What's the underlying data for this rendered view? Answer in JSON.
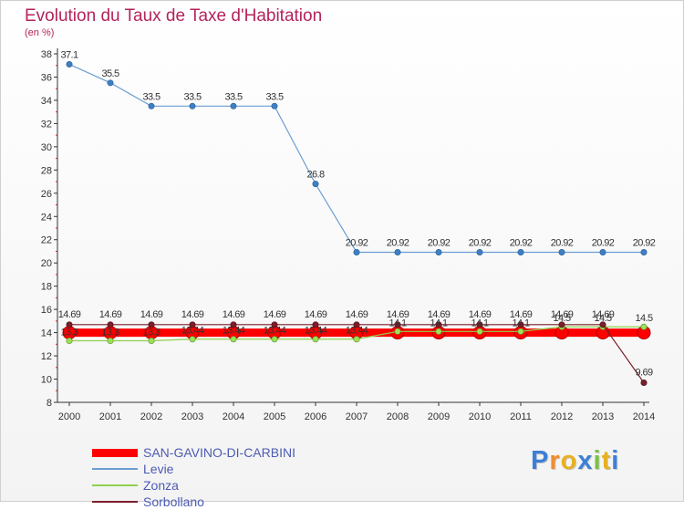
{
  "header": {
    "title": "Evolution du Taux de Taxe d'Habitation",
    "subtitle": "(en %)"
  },
  "chart_data": {
    "type": "line",
    "title": "Evolution du Taux de Taxe d'Habitation",
    "subtitle": "(en %)",
    "xlabel": "",
    "ylabel": "",
    "x": [
      2000,
      2001,
      2002,
      2003,
      2004,
      2005,
      2006,
      2007,
      2008,
      2009,
      2010,
      2011,
      2012,
      2013,
      2014
    ],
    "ylim": [
      8,
      38
    ],
    "yticks": [
      8,
      10,
      12,
      14,
      16,
      18,
      20,
      22,
      24,
      26,
      28,
      30,
      32,
      34,
      36,
      38
    ],
    "grid": false,
    "legend_position": "bottom-left",
    "series": [
      {
        "name": "SAN-GAVINO-DI-CARBINI",
        "color": "#ff0000",
        "values": [
          14,
          14,
          14,
          14,
          14,
          14,
          14,
          14,
          14,
          14,
          14,
          14,
          14,
          14,
          14
        ],
        "labels": []
      },
      {
        "name": "Levie",
        "color": "#6b9ed2",
        "values": [
          37.1,
          35.5,
          33.5,
          33.5,
          33.5,
          33.5,
          26.8,
          20.92,
          20.92,
          20.92,
          20.92,
          20.92,
          20.92,
          20.92,
          20.92
        ],
        "labels": [
          "37.1",
          "35.5",
          "33.5",
          "33.5",
          "33.5",
          "33.5",
          "26.8",
          "20.92",
          "20.92",
          "20.92",
          "20.92",
          "20.92",
          "20.92",
          "20.92",
          "20.92"
        ]
      },
      {
        "name": "Zonza",
        "color": "#8fd14f",
        "values": [
          13.3,
          13.3,
          13.3,
          13.44,
          13.44,
          13.44,
          13.44,
          13.44,
          14.1,
          14.1,
          14.1,
          14.1,
          14.5,
          14.5,
          14.5
        ],
        "labels": [
          "13.3",
          "13.3",
          "13.3",
          "13.44",
          "13.44",
          "13.44",
          "13.44",
          "13.44",
          "14.1",
          "14.1",
          "14.1",
          "14.1",
          "14.5",
          "14.5",
          "14.5"
        ]
      },
      {
        "name": "Sorbollano",
        "color": "#7a1f2b",
        "values": [
          14.69,
          14.69,
          14.69,
          14.69,
          14.69,
          14.69,
          14.69,
          14.69,
          14.69,
          14.69,
          14.69,
          14.69,
          14.69,
          14.69,
          9.69
        ],
        "labels": [
          "14.69",
          "14.69",
          "14.69",
          "14.69",
          "14.69",
          "14.69",
          "14.69",
          "14.69",
          "14.69",
          "14.69",
          "14.69",
          "14.69",
          "14.69",
          "14.69",
          "9.69"
        ]
      }
    ]
  },
  "logo": {
    "text": "Proxiti",
    "letter_colors": [
      "#3d7fd6",
      "#f28c28",
      "#e8b020",
      "#3d7fd6",
      "#7ac143",
      "#e8b020",
      "#3d7fd6"
    ]
  }
}
